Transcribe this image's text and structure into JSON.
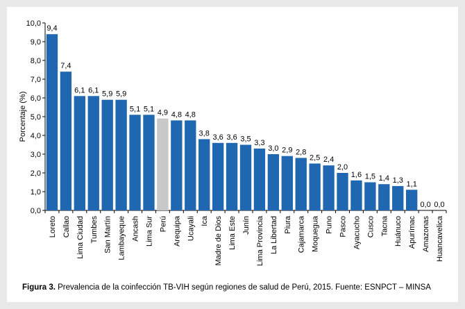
{
  "chart_data": {
    "type": "bar",
    "ylabel": "Porcentaje  (%)",
    "xlabel": "",
    "ylim": [
      0,
      10
    ],
    "ytick_step": 1,
    "ytick_labels": [
      "0,0",
      "1,0",
      "2,0",
      "3,0",
      "4,0",
      "5,0",
      "6,0",
      "7,0",
      "8,0",
      "9,0",
      "10,0"
    ],
    "grid": false,
    "categories": [
      "Loreto",
      "Callao",
      "Lima Ciudad",
      "Tumbes",
      "San Martín",
      "Lambayeque",
      "Ancash",
      "Lima Sur",
      "Perú",
      "Arequipa",
      "Ucayali",
      "Ica",
      "Madre de Dios",
      "Lima Este",
      "Junín",
      "Lima Provincia",
      "La Libertad",
      "Piura",
      "Cajamarca",
      "Moquegua",
      "Puno",
      "Pasco",
      "Ayacucho",
      "Cusco",
      "Tacna",
      "Huánuco",
      "Apurímac",
      "Amazonas",
      "Huancavelica"
    ],
    "values": [
      9.4,
      7.4,
      6.1,
      6.1,
      5.9,
      5.9,
      5.1,
      5.1,
      4.9,
      4.8,
      4.8,
      3.8,
      3.6,
      3.6,
      3.5,
      3.3,
      3.0,
      2.9,
      2.8,
      2.5,
      2.4,
      2.0,
      1.6,
      1.5,
      1.4,
      1.3,
      1.1,
      0.0,
      0.0
    ],
    "value_labels": [
      "9,4",
      "7,4",
      "6,1",
      "6,1",
      "5,9",
      "5,9",
      "5,1",
      "5,1",
      "4,9",
      "4,8",
      "4,8",
      "3,8",
      "3,6",
      "3,6",
      "3,5",
      "3,3",
      "3,0",
      "2,9",
      "2,8",
      "2,5",
      "2,4",
      "2,0",
      "1,6",
      "1,5",
      "1,4",
      "1,3",
      "1,1",
      "0,0",
      "0,0"
    ],
    "highlight_category": "Perú",
    "colors": {
      "bar": "#1f68b1",
      "highlight": "#c8c8c8",
      "axis": "#000000"
    }
  },
  "caption": {
    "label": "Figura 3.",
    "text": " Prevalencia de la coinfección TB-VIH según regiones de salud de Perú, 2015. Fuente: ESNPCT – MINSA"
  }
}
